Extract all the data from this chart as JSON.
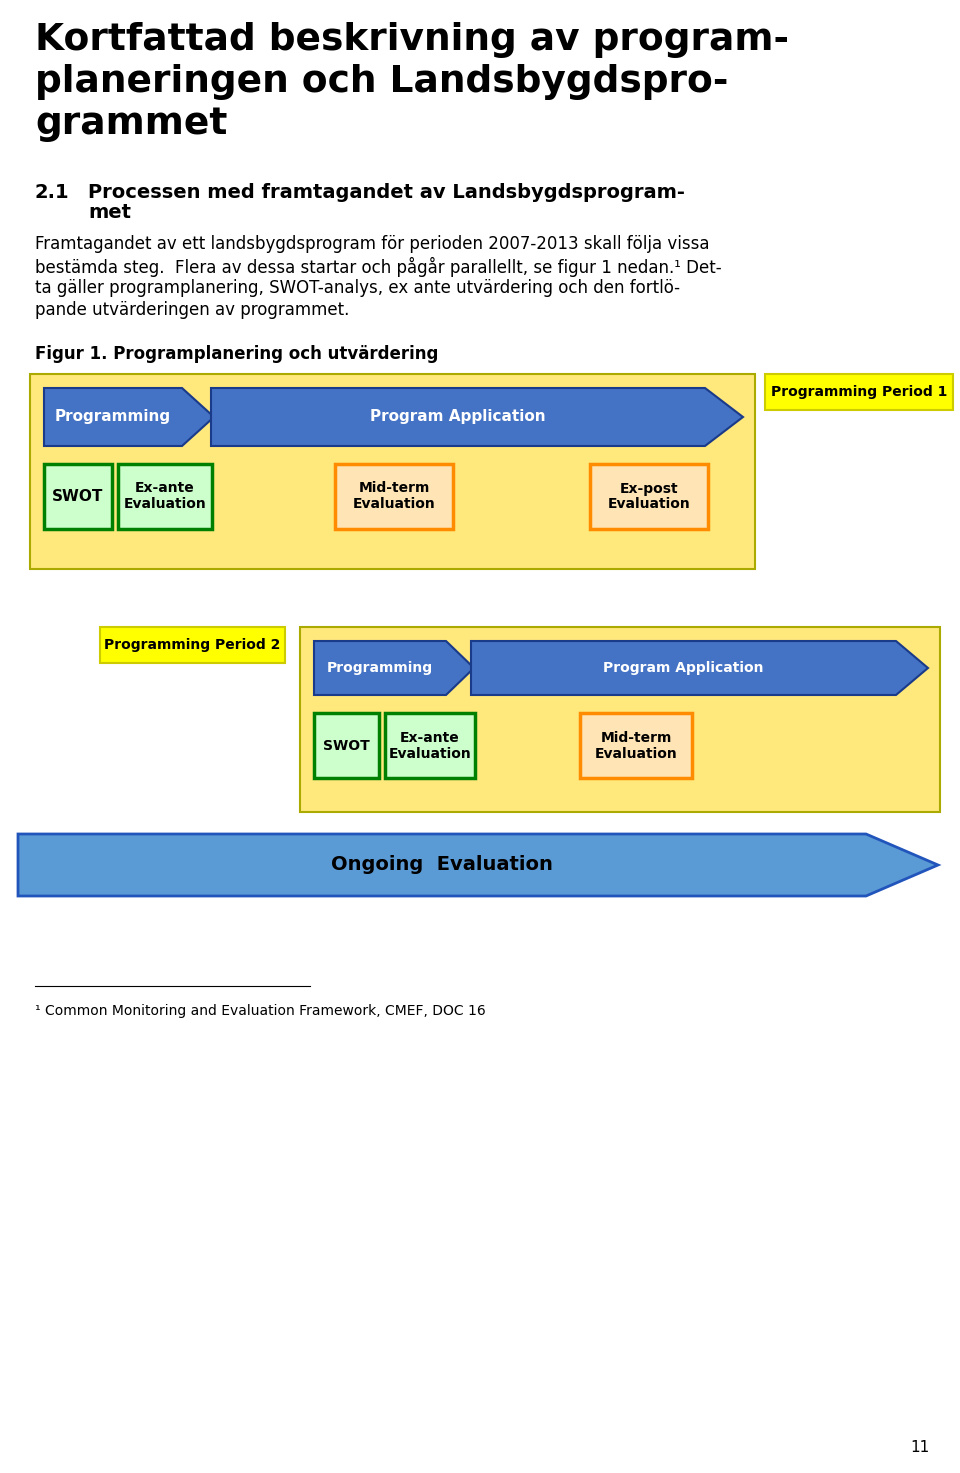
{
  "title_line1": "Kortfattad beskrivning av program-",
  "title_line2": "planeringen och Landsbygdspro-",
  "title_line3": "grammet",
  "section_num": "2.1",
  "section_title1": "Processen med framtagandet av Landsbygdsprogram-",
  "section_title2": "met",
  "body_lines": [
    "Framtagandet av ett landsbygdsprogram för perioden 2007-2013 skall följa vissa",
    "bestämda steg.  Flera av dessa startar och pågår parallellt, se figur 1 nedan.¹ Det-",
    "ta gäller programplanering, SWOT-analys, ex ante utvärdering och den fortlö-",
    "pande utvärderingen av programmet."
  ],
  "figur_label": "Figur 1. Programplanering och utvärdering",
  "footnote_line": "¹ Common Monitoring and Evaluation Framework, CMEF, DOC 16",
  "page_number": "11",
  "bg_color": "#ffffff",
  "light_yellow_bg": "#FFE87C",
  "blue_arrow_color": "#4472C4",
  "green_box_dark": "#008000",
  "green_box_light": "#CCFFCC",
  "orange_box_border": "#FF8C00",
  "orange_box_fill": "#FFE4B5",
  "yellow_label_bg": "#FFFF00",
  "yellow_label_border": "#CCCC00",
  "ongoing_blue": "#5B9BD5",
  "ongoing_edge": "#2255BB"
}
